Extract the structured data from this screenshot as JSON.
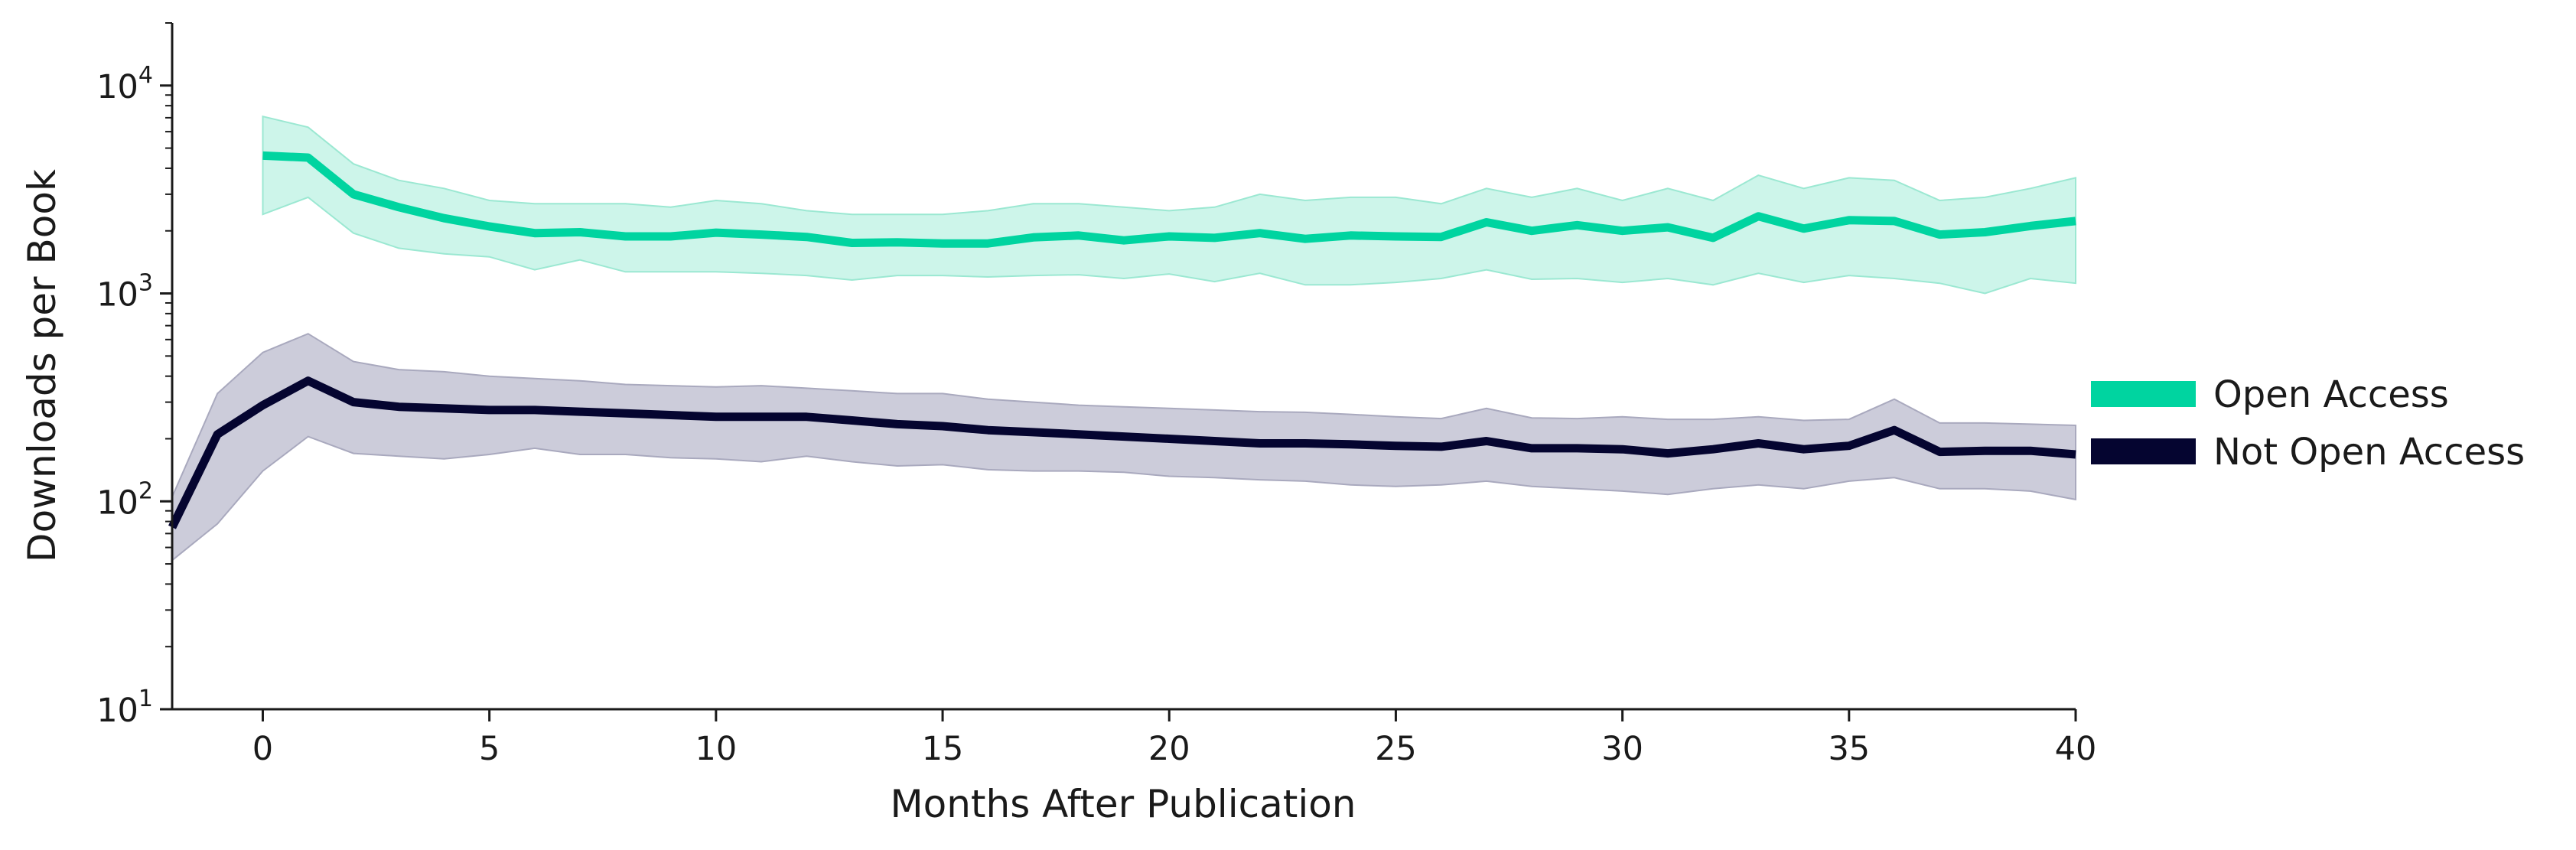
{
  "chart_data": {
    "type": "line",
    "title": "",
    "xlabel": "Months After Publication",
    "ylabel": "Downloads per Book",
    "xlim": [
      -2,
      40
    ],
    "ylim": [
      10,
      20000
    ],
    "yscale": "log",
    "xticks": [
      0,
      5,
      10,
      15,
      20,
      25,
      30,
      35,
      40
    ],
    "xtick_labels": [
      "0",
      "5",
      "10",
      "15",
      "20",
      "25",
      "30",
      "35",
      "40"
    ],
    "yticks": [
      {
        "value": 10,
        "base": "10",
        "exp": "1"
      },
      {
        "value": 100,
        "base": "10",
        "exp": "2"
      },
      {
        "value": 1000,
        "base": "10",
        "exp": "3"
      },
      {
        "value": 10000,
        "base": "10",
        "exp": "4"
      }
    ],
    "grid": false,
    "legend_position": "right",
    "series": [
      {
        "name": "Open Access",
        "color": "#00d4a0",
        "band_color": "#cdf5ea",
        "band_edge": "#9be8d2",
        "x": [
          0,
          1,
          2,
          3,
          4,
          5,
          6,
          7,
          8,
          9,
          10,
          11,
          12,
          13,
          14,
          15,
          16,
          17,
          18,
          19,
          20,
          21,
          22,
          23,
          24,
          25,
          26,
          27,
          28,
          29,
          30,
          31,
          32,
          33,
          34,
          35,
          36,
          37,
          38,
          39,
          40
        ],
        "y": [
          4600,
          4500,
          3000,
          2600,
          2300,
          2100,
          1950,
          1970,
          1880,
          1880,
          1960,
          1920,
          1870,
          1750,
          1760,
          1740,
          1740,
          1860,
          1900,
          1800,
          1880,
          1850,
          1950,
          1830,
          1900,
          1880,
          1870,
          2200,
          2000,
          2130,
          2000,
          2080,
          1850,
          2350,
          2050,
          2250,
          2230,
          1920,
          1970,
          2110,
          2230
        ],
        "lower": [
          2400,
          2900,
          1950,
          1650,
          1550,
          1500,
          1300,
          1450,
          1270,
          1270,
          1270,
          1250,
          1220,
          1160,
          1220,
          1220,
          1200,
          1220,
          1230,
          1180,
          1240,
          1140,
          1250,
          1100,
          1100,
          1130,
          1180,
          1300,
          1170,
          1180,
          1130,
          1180,
          1100,
          1250,
          1130,
          1220,
          1180,
          1120,
          1000,
          1180,
          1120
        ],
        "upper": [
          7100,
          6300,
          4200,
          3500,
          3200,
          2800,
          2700,
          2700,
          2700,
          2600,
          2800,
          2700,
          2500,
          2400,
          2400,
          2400,
          2500,
          2700,
          2700,
          2600,
          2500,
          2600,
          3000,
          2800,
          2900,
          2900,
          2700,
          3200,
          2900,
          3200,
          2800,
          3200,
          2800,
          3700,
          3200,
          3600,
          3500,
          2800,
          2900,
          3200,
          3600
        ]
      },
      {
        "name": "Not Open Access",
        "color": "#050530",
        "band_color": "#ccccda",
        "band_edge": "#a9a9be",
        "x": [
          -2,
          -1,
          0,
          1,
          2,
          3,
          4,
          5,
          6,
          7,
          8,
          9,
          10,
          11,
          12,
          13,
          14,
          15,
          16,
          17,
          18,
          19,
          20,
          21,
          22,
          23,
          24,
          25,
          26,
          27,
          28,
          29,
          30,
          31,
          32,
          33,
          34,
          35,
          36,
          37,
          38,
          39,
          40
        ],
        "y": [
          75,
          210,
          290,
          380,
          300,
          285,
          280,
          275,
          275,
          270,
          265,
          260,
          255,
          255,
          255,
          245,
          235,
          230,
          220,
          215,
          210,
          205,
          200,
          195,
          190,
          190,
          188,
          185,
          183,
          195,
          180,
          180,
          178,
          170,
          178,
          190,
          178,
          185,
          220,
          173,
          175,
          175,
          168
        ],
        "lower": [
          52,
          78,
          140,
          205,
          170,
          165,
          160,
          168,
          180,
          168,
          168,
          162,
          160,
          155,
          165,
          155,
          148,
          150,
          142,
          140,
          140,
          138,
          132,
          130,
          127,
          125,
          120,
          118,
          120,
          125,
          118,
          115,
          112,
          108,
          115,
          120,
          115,
          125,
          130,
          115,
          115,
          112,
          102
        ],
        "upper": [
          105,
          330,
          520,
          640,
          470,
          430,
          420,
          400,
          390,
          380,
          365,
          360,
          355,
          360,
          350,
          340,
          330,
          330,
          310,
          300,
          290,
          285,
          280,
          275,
          270,
          268,
          262,
          255,
          250,
          280,
          252,
          250,
          255,
          248,
          248,
          255,
          245,
          248,
          310,
          238,
          238,
          235,
          232
        ]
      }
    ]
  }
}
